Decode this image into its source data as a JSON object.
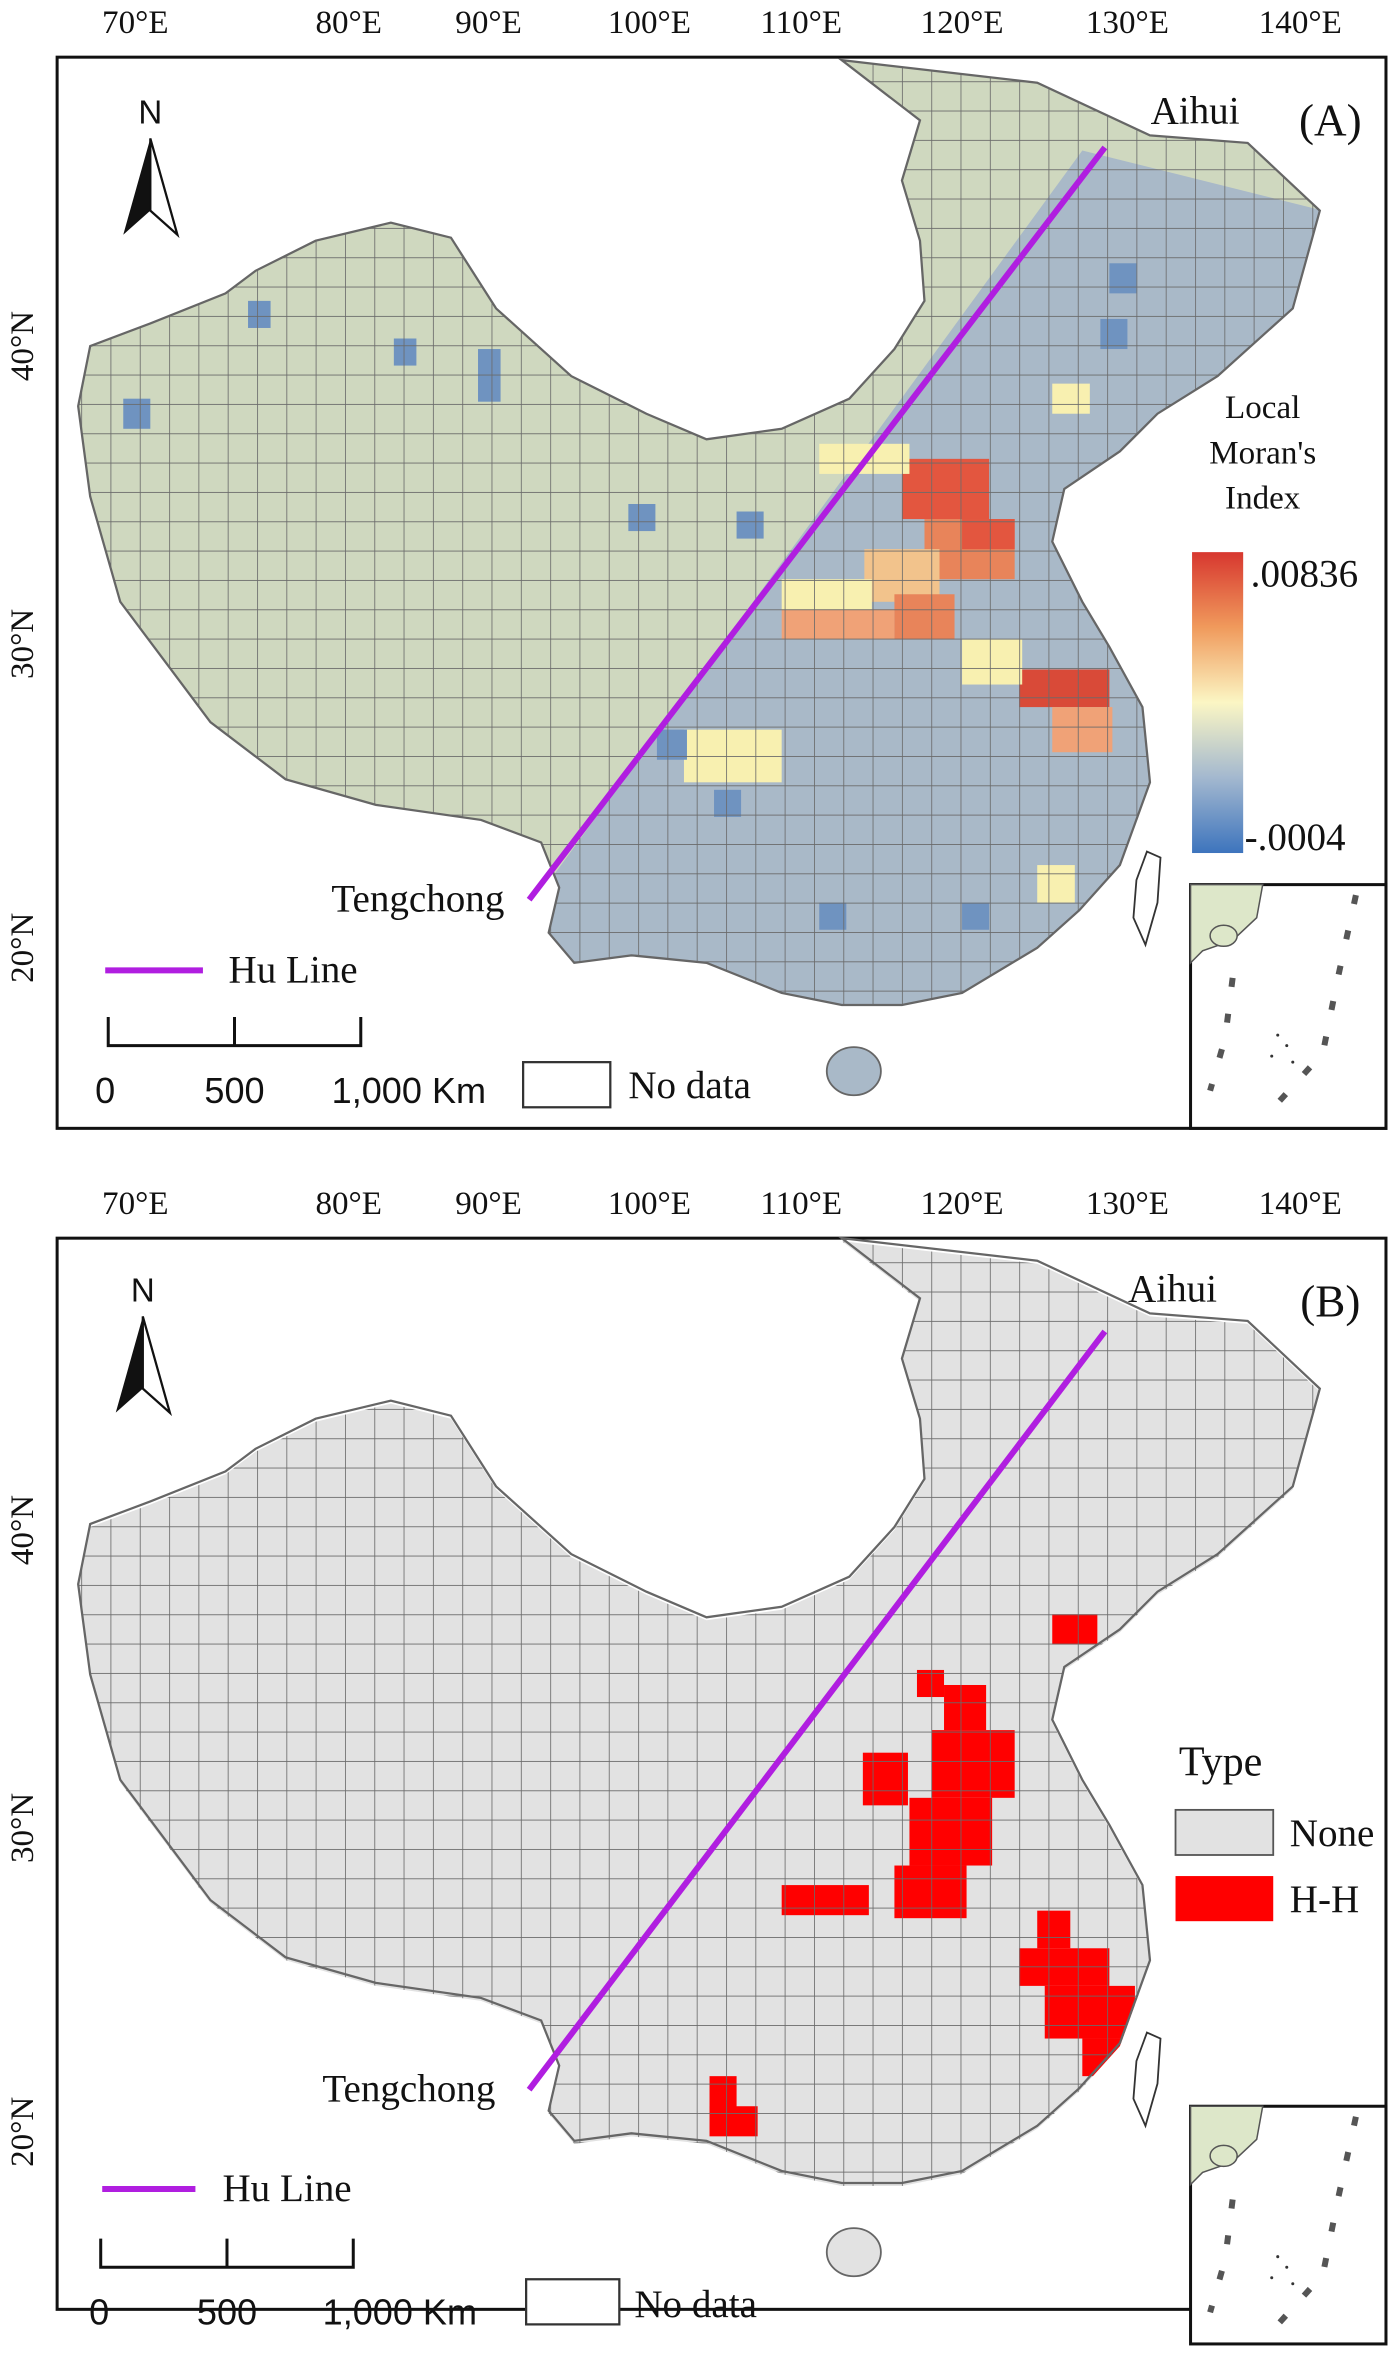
{
  "panels": {
    "A": {
      "panel_label": "(A)",
      "north_label": "N",
      "lon_ticks": [
        "70°E",
        "80°E",
        "90°E",
        "100°E",
        "110°E",
        "120°E",
        "130°E",
        "140°E"
      ],
      "lat_ticks": [
        "40°N",
        "30°N",
        "20°N"
      ],
      "aihui_label": "Aihui",
      "tengchong_label": "Tengchong",
      "legend_title": [
        "Local",
        "Moran's",
        "Index"
      ],
      "legend_high": ".00836",
      "legend_low": "-.0004",
      "hu_line_label": "Hu Line",
      "scale_labels": [
        "0",
        "500",
        "1,000 Km"
      ],
      "no_data_label": "No data"
    },
    "B": {
      "panel_label": "(B)",
      "north_label": "N",
      "lon_ticks": [
        "70°E",
        "80°E",
        "90°E",
        "100°E",
        "110°E",
        "120°E",
        "130°E",
        "140°E"
      ],
      "lat_ticks": [
        "40°N",
        "30°N",
        "20°N"
      ],
      "aihui_label": "Aihui",
      "tengchong_label": "Tengchong",
      "legend_title": "Type",
      "legend_items": [
        "None",
        "H-H"
      ],
      "hu_line_label": "Hu Line",
      "scale_labels": [
        "0",
        "500",
        "1,000 Km"
      ],
      "no_data_label": "No data"
    }
  },
  "colors": {
    "hu_line": "#b01ee0",
    "hh": "#ff0000",
    "none": "#e2e2e2",
    "base_green": "#ccd6bb",
    "land": "#e8efd8",
    "grid_line": "#6a6a6a"
  }
}
